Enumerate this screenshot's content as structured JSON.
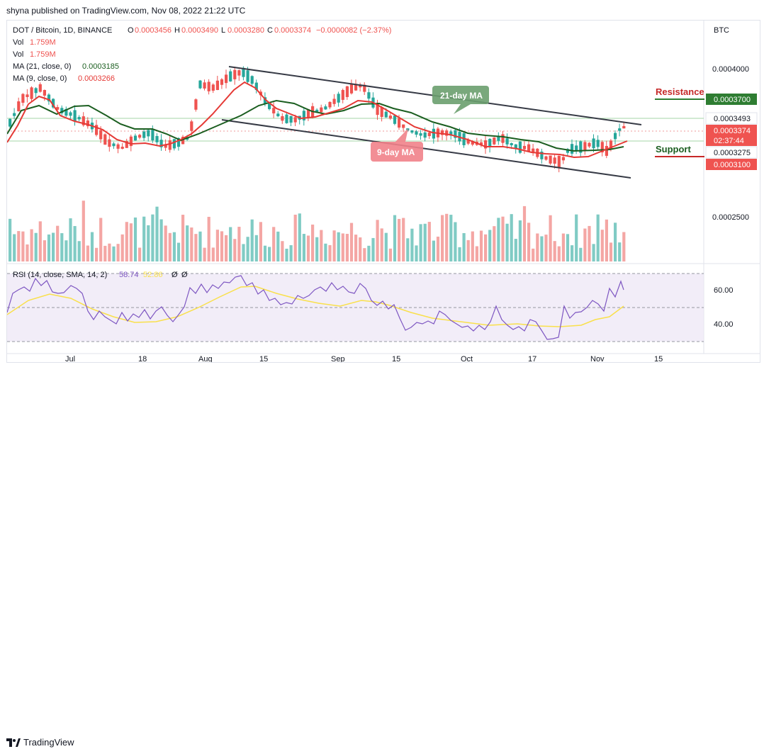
{
  "publisher": "shyna published on TradingView.com, Nov 08, 2022 21:22 UTC",
  "header": {
    "symbol": "DOT / Bitcoin, 1D, BINANCE",
    "ohlc": {
      "o_label": "O",
      "o": "0.0003456",
      "h_label": "H",
      "h": "0.0003490",
      "l_label": "L",
      "l": "0.0003280",
      "c_label": "C",
      "c": "0.0003374",
      "change": "−0.0000082 (−2.37%)"
    },
    "vol_rows": [
      {
        "label": "Vol",
        "value": "1.759M"
      },
      {
        "label": "Vol",
        "value": "1.759M"
      }
    ],
    "ma21": {
      "label": "MA (21, close, 0)",
      "value": "0.0003185"
    },
    "ma9": {
      "label": "MA (9, close, 0)",
      "value": "0.0003266"
    }
  },
  "axis": {
    "currency": "BTC",
    "price_labels": [
      "0.0004000",
      "0.0002500"
    ],
    "rsi_labels": [
      "60.00",
      "40.00"
    ],
    "time_labels": [
      "Jul",
      "18",
      "Aug",
      "15",
      "Sep",
      "15",
      "Oct",
      "17",
      "Nov",
      "15"
    ]
  },
  "badges": {
    "b1": "0.0003493",
    "b2": "0.0003374",
    "b2_time": "02:37:44",
    "b3": "0.0003275",
    "b4": "0.0003100"
  },
  "annotations": {
    "resistance": "Resistance",
    "resistance_value": "0.0003700",
    "support": "Support",
    "ma21_callout": "21-day MA",
    "ma9_callout": "9-day MA"
  },
  "rsi": {
    "label": "RSI (14, close, SMA, 14, 2)",
    "value1": "58.74",
    "value2": "52.86",
    "zero1": "Ø",
    "zero2": "Ø"
  },
  "footer": {
    "brand": "TradingView"
  },
  "colors": {
    "up": "#26a69a",
    "down": "#ef5350",
    "ma21": "#1b5e20",
    "ma9": "#e53935",
    "rsi": "#7e57c2",
    "rsi_sma": "#f9e04b",
    "channel": "#363a45",
    "resistance_line": "#2e7d32",
    "support_line": "#c62828"
  }
}
